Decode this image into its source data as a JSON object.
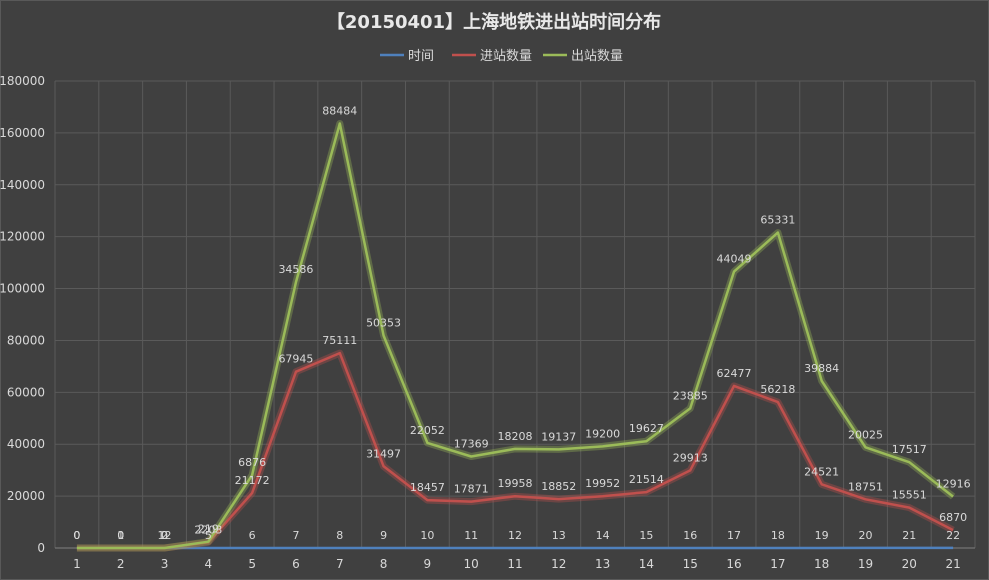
{
  "chart_data": {
    "type": "line",
    "title": "【20150401】上海地铁进出站时间分布",
    "legend_position": "top",
    "grid": true,
    "xlabel": "",
    "ylabel": "",
    "ylim": [
      0,
      180000
    ],
    "yticks": [
      "0",
      "20000",
      "40000",
      "60000",
      "80000",
      "100000",
      "120000",
      "140000",
      "160000",
      "180000"
    ],
    "categories": [
      "1",
      "2",
      "3",
      "4",
      "5",
      "6",
      "7",
      "8",
      "9",
      "10",
      "11",
      "12",
      "13",
      "14",
      "15",
      "16",
      "17",
      "18",
      "19",
      "20",
      "21"
    ],
    "series": [
      {
        "name": "时间",
        "color": "#4f81bd",
        "values": [
          0,
          1,
          2,
          5,
          6,
          7,
          8,
          9,
          10,
          11,
          12,
          13,
          14,
          15,
          16,
          17,
          18,
          19,
          20,
          21,
          22
        ],
        "labels": [
          "0",
          "1",
          "2",
          "5",
          "6",
          "7",
          "8",
          "9",
          "10",
          "11",
          "12",
          "13",
          "14",
          "15",
          "16",
          "17",
          "18",
          "19",
          "20",
          "21",
          "22"
        ],
        "stacked_values": [
          0,
          1,
          2,
          5,
          6,
          7,
          8,
          9,
          10,
          11,
          12,
          13,
          14,
          15,
          16,
          17,
          18,
          19,
          20,
          21,
          22
        ]
      },
      {
        "name": "进站数量",
        "color": "#c0504d",
        "values": [
          0,
          0,
          12,
          2203,
          21172,
          67945,
          75111,
          31497,
          18457,
          17871,
          19958,
          18852,
          19952,
          21514,
          29913,
          62477,
          56218,
          24521,
          18751,
          15551,
          6870
        ],
        "labels": [
          "0",
          "0",
          "12",
          "2203",
          "21172",
          "67945",
          "75111",
          "31497",
          "18457",
          "17871",
          "19958",
          "18852",
          "19952",
          "21514",
          "29913",
          "62477",
          "56218",
          "24521",
          "18751",
          "15551",
          "6870"
        ],
        "stacked_values": [
          0,
          1,
          14,
          2208,
          21178,
          67952,
          75119,
          31506,
          18467,
          17882,
          19970,
          18865,
          19966,
          21529,
          29929,
          62494,
          56236,
          24540,
          18771,
          15572,
          6892
        ]
      },
      {
        "name": "出站数量",
        "color": "#9bbb59",
        "values": [
          0,
          0,
          0,
          219,
          6876,
          34586,
          88484,
          50353,
          22052,
          17369,
          18208,
          19137,
          19200,
          19627,
          23885,
          44049,
          65331,
          39884,
          20025,
          17517,
          12916
        ],
        "labels": [
          "0",
          "0",
          "0",
          "219",
          "6876",
          "34586",
          "88484",
          "50353",
          "22052",
          "17369",
          "18208",
          "19137",
          "19200",
          "19627",
          "23885",
          "44049",
          "65331",
          "39884",
          "20025",
          "17517",
          "12916"
        ],
        "stacked_values": [
          0,
          1,
          14,
          2427,
          28054,
          102538,
          163603,
          81859,
          40519,
          35251,
          38178,
          38002,
          39166,
          41156,
          53814,
          106543,
          121567,
          64424,
          38796,
          33089,
          19808
        ]
      }
    ]
  }
}
